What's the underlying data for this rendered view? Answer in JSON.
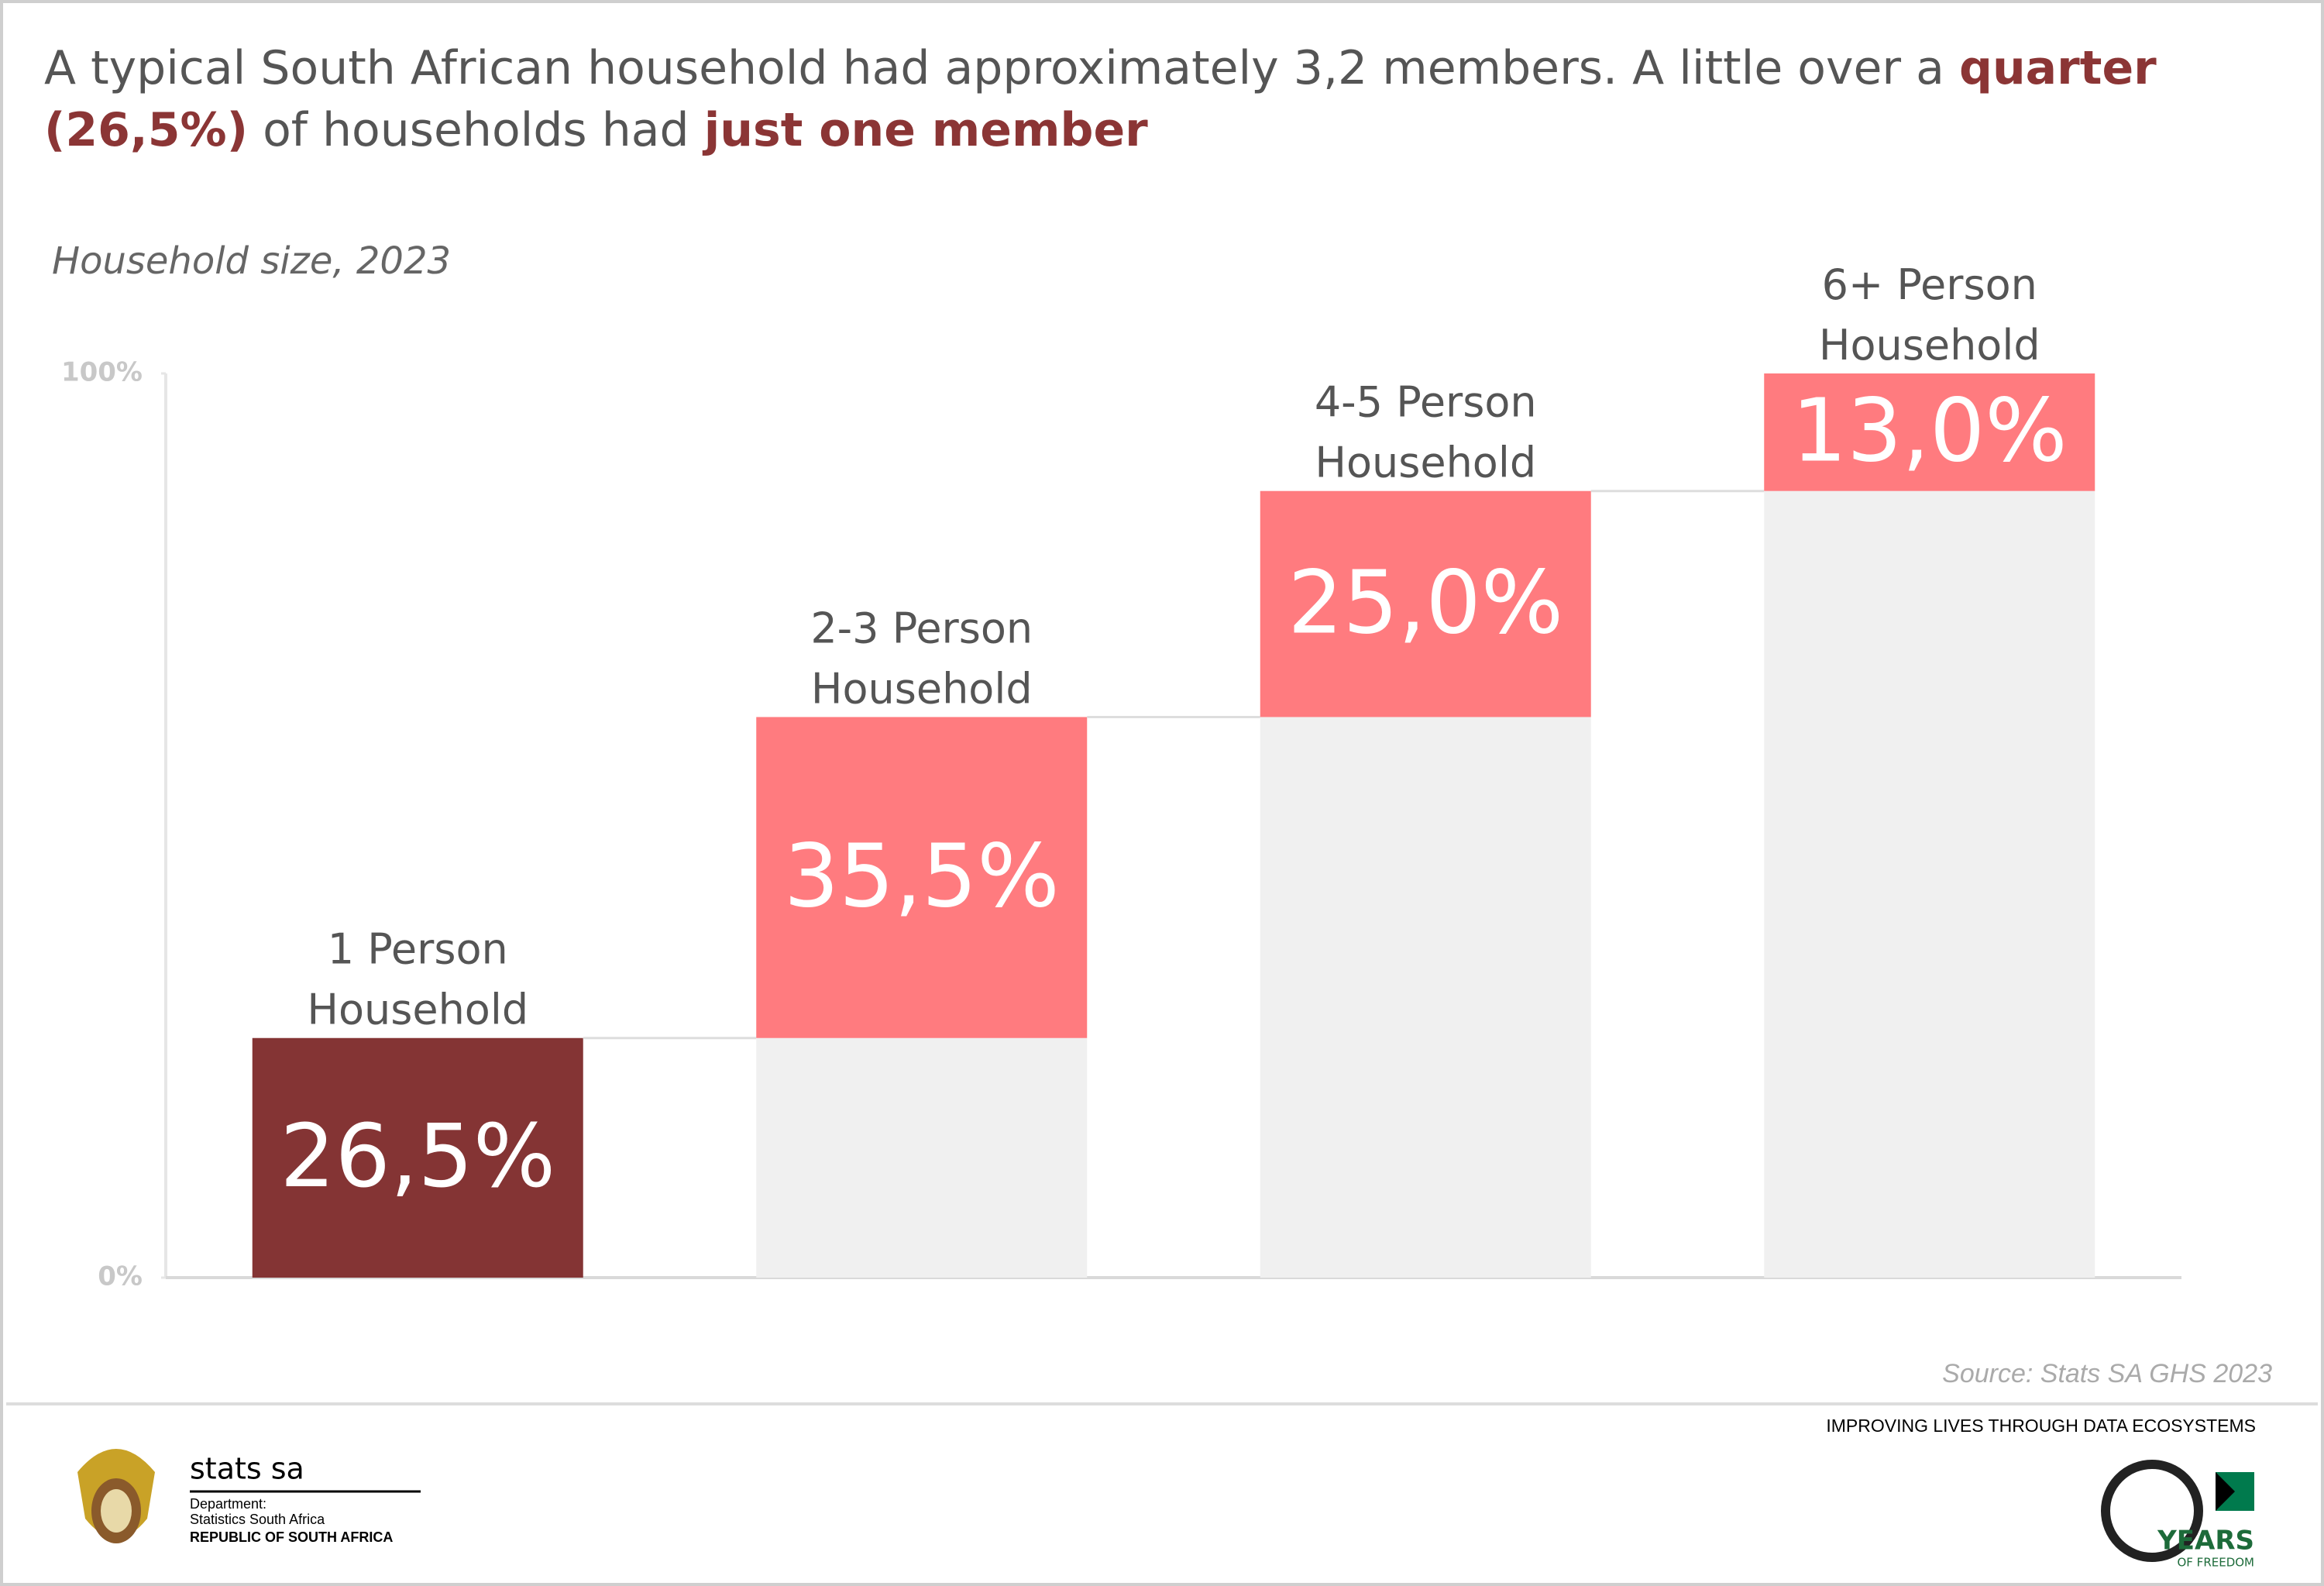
{
  "chart_data": {
    "type": "waterfall",
    "title": [
      "A typical South African household had approximately 3,2 members. A little over a ",
      "quarter (26,5%)",
      " of households had ",
      "just one member"
    ],
    "subtitle": "Household size, 2023",
    "categories": [
      "1 Person Household",
      "2-3 Person Household",
      "4-5 Person Household",
      "6+ Person Household"
    ],
    "values": [
      26.5,
      35.5,
      25.0,
      13.0
    ],
    "value_labels": [
      "26,5%",
      "35,5%",
      "25,0%",
      "13,0%"
    ],
    "colors": [
      "#843434",
      "#ff7b7f",
      "#ff7b7f",
      "#ff7b7f"
    ],
    "ylim": [
      0,
      100
    ],
    "yticks": [
      {
        "value": 0,
        "label": "0%"
      },
      {
        "value": 100,
        "label": "100%"
      }
    ],
    "source": "Source: Stats SA GHS 2023"
  },
  "footer": {
    "org": "stats sa",
    "dept": [
      "Department:",
      "Statistics South Africa",
      "REPUBLIC OF SOUTH AFRICA"
    ],
    "slogan": "IMPROVING LIVES THROUGH DATA ECOSYSTEMS",
    "badge": [
      "YEARS",
      "OF FREEDOM"
    ]
  }
}
